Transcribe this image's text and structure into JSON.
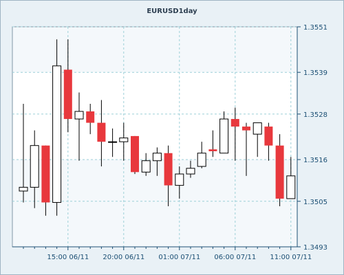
{
  "chart_data": {
    "type": "candlestick",
    "title": "EURUSD1day",
    "y_ticks": [
      1.3551,
      1.3539,
      1.3528,
      1.3516,
      1.3505,
      1.3493
    ],
    "ylim": [
      1.3493,
      1.3551
    ],
    "x_ticks": [
      "15:00 06/11",
      "20:00 06/11",
      "01:00 07/11",
      "06:00 07/11",
      "11:00 07/11"
    ],
    "up_color": "#ffffff",
    "down_color": "#e8383d",
    "grid": true,
    "candles": [
      {
        "open": 1.35077,
        "high": 1.35307,
        "low": 1.35047,
        "close": 1.35087
      },
      {
        "open": 1.35087,
        "high": 1.35237,
        "low": 1.35032,
        "close": 1.35197
      },
      {
        "open": 1.35197,
        "high": 1.35197,
        "low": 1.35012,
        "close": 1.35047
      },
      {
        "open": 1.35047,
        "high": 1.35477,
        "low": 1.35012,
        "close": 1.35407
      },
      {
        "open": 1.35397,
        "high": 1.35477,
        "low": 1.35232,
        "close": 1.35267
      },
      {
        "open": 1.35267,
        "high": 1.35337,
        "low": 1.35157,
        "close": 1.35287
      },
      {
        "open": 1.35287,
        "high": 1.35307,
        "low": 1.35227,
        "close": 1.35257
      },
      {
        "open": 1.35257,
        "high": 1.35317,
        "low": 1.35142,
        "close": 1.35207
      },
      {
        "open": 1.35207,
        "high": 1.35242,
        "low": 1.35167,
        "close": 1.35207
      },
      {
        "open": 1.35207,
        "high": 1.35257,
        "low": 1.35157,
        "close": 1.35217
      },
      {
        "open": 1.35222,
        "high": 1.35222,
        "low": 1.35122,
        "close": 1.35127
      },
      {
        "open": 1.35127,
        "high": 1.35177,
        "low": 1.35117,
        "close": 1.35157
      },
      {
        "open": 1.35157,
        "high": 1.35192,
        "low": 1.35117,
        "close": 1.35177
      },
      {
        "open": 1.35177,
        "high": 1.35197,
        "low": 1.35037,
        "close": 1.35092
      },
      {
        "open": 1.35092,
        "high": 1.35142,
        "low": 1.35057,
        "close": 1.35122
      },
      {
        "open": 1.35122,
        "high": 1.35157,
        "low": 1.35112,
        "close": 1.35137
      },
      {
        "open": 1.35142,
        "high": 1.35207,
        "low": 1.35137,
        "close": 1.35177
      },
      {
        "open": 1.35187,
        "high": 1.35237,
        "low": 1.35167,
        "close": 1.35182
      },
      {
        "open": 1.35177,
        "high": 1.35287,
        "low": 1.35177,
        "close": 1.35267
      },
      {
        "open": 1.35267,
        "high": 1.35297,
        "low": 1.35157,
        "close": 1.35247
      },
      {
        "open": 1.35247,
        "high": 1.35257,
        "low": 1.35117,
        "close": 1.35237
      },
      {
        "open": 1.35227,
        "high": 1.35257,
        "low": 1.35167,
        "close": 1.35257
      },
      {
        "open": 1.35247,
        "high": 1.35257,
        "low": 1.35157,
        "close": 1.35197
      },
      {
        "open": 1.35197,
        "high": 1.35227,
        "low": 1.35037,
        "close": 1.35057
      },
      {
        "open": 1.35057,
        "high": 1.35167,
        "low": 1.35057,
        "close": 1.35117
      }
    ]
  }
}
